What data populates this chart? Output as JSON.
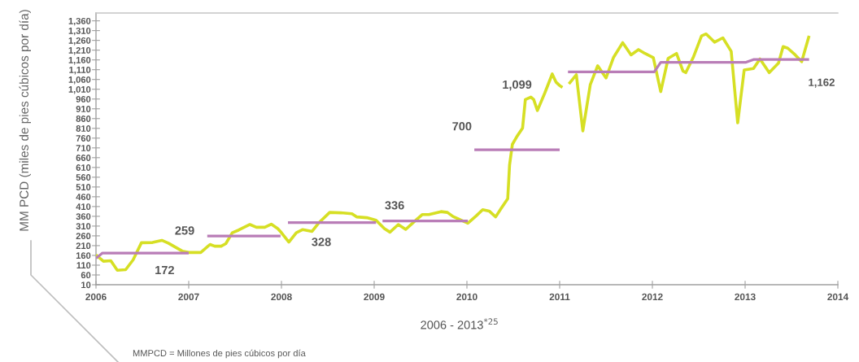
{
  "chart_data": {
    "type": "line",
    "xlabel": "2006 - 2013$^{*25}$",
    "ylabel": "MM PCD (miles de pies cúbicos por día)",
    "annotations": [
      {
        "text": "172",
        "x": 2006.74,
        "y": 172
      },
      {
        "text": "259",
        "x": 2007.2,
        "y": 259
      },
      {
        "text": "328",
        "x": 2008.43,
        "y": 328
      },
      {
        "text": "336",
        "x": 2009.22,
        "y": 336
      },
      {
        "text": "700",
        "x": 2010.08,
        "y": 700
      },
      {
        "text": "1,162",
        "x": 2013.69,
        "y": 1162
      },
      "1,099",
      "MMPCD = Millones de pies cúbicos por día"
    ],
    "series": [
      {
        "color": "#d6df24",
        "x": [
          2006.0,
          2006.08,
          2006.16,
          2006.23,
          2006.32,
          2006.4,
          2006.49,
          2006.61,
          2006.71,
          2006.78,
          2006.93,
          2007.0,
          2007.13,
          2007.23,
          2007.28,
          2007.35,
          2007.4,
          2007.47,
          2007.54,
          2007.66,
          2007.73,
          2007.82,
          2007.89,
          2007.96,
          2008.0,
          2008.08,
          2008.16,
          2008.23,
          2008.33,
          2008.4,
          2008.52,
          2008.64,
          2008.76,
          2008.81,
          2008.92,
          2009.02,
          2009.11,
          2009.17,
          2009.26,
          2009.34,
          2009.43,
          2009.52,
          2009.59,
          2009.72,
          2009.79,
          2009.85,
          2010.01,
          2010.1,
          2010.17,
          2010.24,
          2010.31,
          2010.37,
          2010.44,
          2010.46,
          2010.49,
          2010.54,
          2010.6,
          2010.63,
          2010.69,
          2010.72,
          2010.76,
          2010.84,
          2010.92,
          2010.96,
          2011.0,
          2011.03,
          2011.06,
          2011.1,
          2011.18,
          2011.25,
          2011.33,
          2011.41,
          2011.5,
          2011.58,
          2011.68,
          2011.77,
          2011.85,
          2011.92,
          2012.01,
          2012.09,
          2012.17,
          2012.26,
          2012.33,
          2012.36,
          2012.44,
          2012.53,
          2012.58,
          2012.67,
          2012.76,
          2012.85,
          2012.92,
          2012.99,
          2013.09,
          2013.16,
          2013.26,
          2013.36,
          2013.41,
          2013.46,
          2013.54,
          2013.61,
          2013.69
        ],
        "values": [
          162,
          130,
          133,
          84,
          87,
          137,
          225,
          226,
          237,
          223,
          182,
          175,
          175,
          216,
          207,
          207,
          220,
          276,
          290,
          318,
          304,
          304,
          320,
          297,
          276,
          228,
          276,
          292,
          283,
          325,
          380,
          378,
          373,
          357,
          353,
          340,
          297,
          279,
          318,
          293,
          332,
          369,
          369,
          384,
          380,
          359,
          325,
          362,
          394,
          387,
          357,
          401,
          450,
          623,
          728,
          769,
          811,
          957,
          970,
          957,
          901,
          991,
          1088,
          1047,
          1029,
          1019,
          null,
          1037,
          1084,
          797,
          1033,
          1130,
          1068,
          1172,
          1248,
          1186,
          1213,
          1193,
          1172,
          998,
          1168,
          1193,
          1103,
          1095,
          1172,
          1283,
          1293,
          1251,
          1273,
          1204,
          838,
          1109,
          1116,
          1165,
          1095,
          1144,
          1228,
          1220,
          1186,
          1151,
          1283
        ]
      },
      {
        "color": "#b97db7",
        "x": [
          2006.0,
          2006.07,
          2007.0,
          2007.1,
          2007.2,
          2007.99,
          2008.03,
          2008.07,
          2009.02,
          2009.05,
          2009.09,
          2010.01,
          2010.04,
          2010.08,
          2011.0,
          2011.05,
          2011.09,
          2012.02,
          2012.09,
          2013.01,
          2013.09,
          2013.69
        ],
        "values": [
          145,
          172,
          172,
          null,
          259,
          259,
          null,
          328,
          328,
          null,
          336,
          336,
          null,
          700,
          700,
          null,
          1099,
          1099,
          1148,
          1148,
          1162,
          1162
        ]
      }
    ],
    "xlim": [
      2006,
      2014
    ],
    "xticks": [
      2006,
      2007,
      2008,
      2009,
      2010,
      2011,
      2012,
      2013,
      2014
    ],
    "ylim": [
      10,
      1400
    ],
    "yticks": [
      10,
      60,
      110,
      160,
      210,
      260,
      310,
      360,
      410,
      460,
      510,
      560,
      610,
      660,
      710,
      760,
      810,
      860,
      910,
      960,
      {
        "value": 1010,
        "label": "1,010"
      },
      {
        "value": 1060,
        "label": "1,060"
      },
      {
        "value": 1110,
        "label": "1,110"
      },
      {
        "value": 1160,
        "label": "1,160"
      },
      {
        "value": 1210,
        "label": "1,210"
      },
      {
        "value": 1260,
        "label": "1,260"
      },
      {
        "value": 1310,
        "label": "1,310"
      },
      {
        "value": 1360,
        "label": "1,360"
      }
    ],
    "line_style": "solid"
  }
}
